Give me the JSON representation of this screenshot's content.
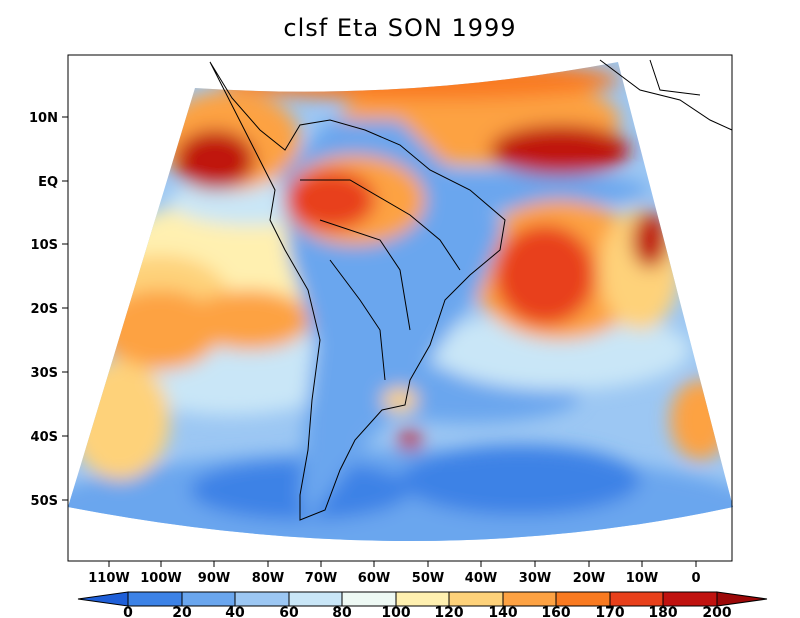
{
  "title": "clsf Eta SON 1999",
  "map": {
    "type": "filled-contour-map",
    "region": "South America",
    "lon_ticks": [
      "110W",
      "100W",
      "90W",
      "80W",
      "70W",
      "60W",
      "50W",
      "40W",
      "30W",
      "20W",
      "10W",
      "0"
    ],
    "lat_ticks": [
      "10N",
      "EQ",
      "10S",
      "20S",
      "30S",
      "40S",
      "50S"
    ]
  },
  "colorbar": {
    "labels": [
      "0",
      "20",
      "40",
      "60",
      "80",
      "100",
      "120",
      "140",
      "160",
      "170",
      "180",
      "200"
    ],
    "colors": [
      "#1f5fd8",
      "#3c82e6",
      "#6aa6ee",
      "#9cc7f3",
      "#c9e6f7",
      "#eef9f4",
      "#fff0b0",
      "#fed27a",
      "#fda243",
      "#f97a20",
      "#e8401b",
      "#c0120f",
      "#9c0808"
    ]
  }
}
